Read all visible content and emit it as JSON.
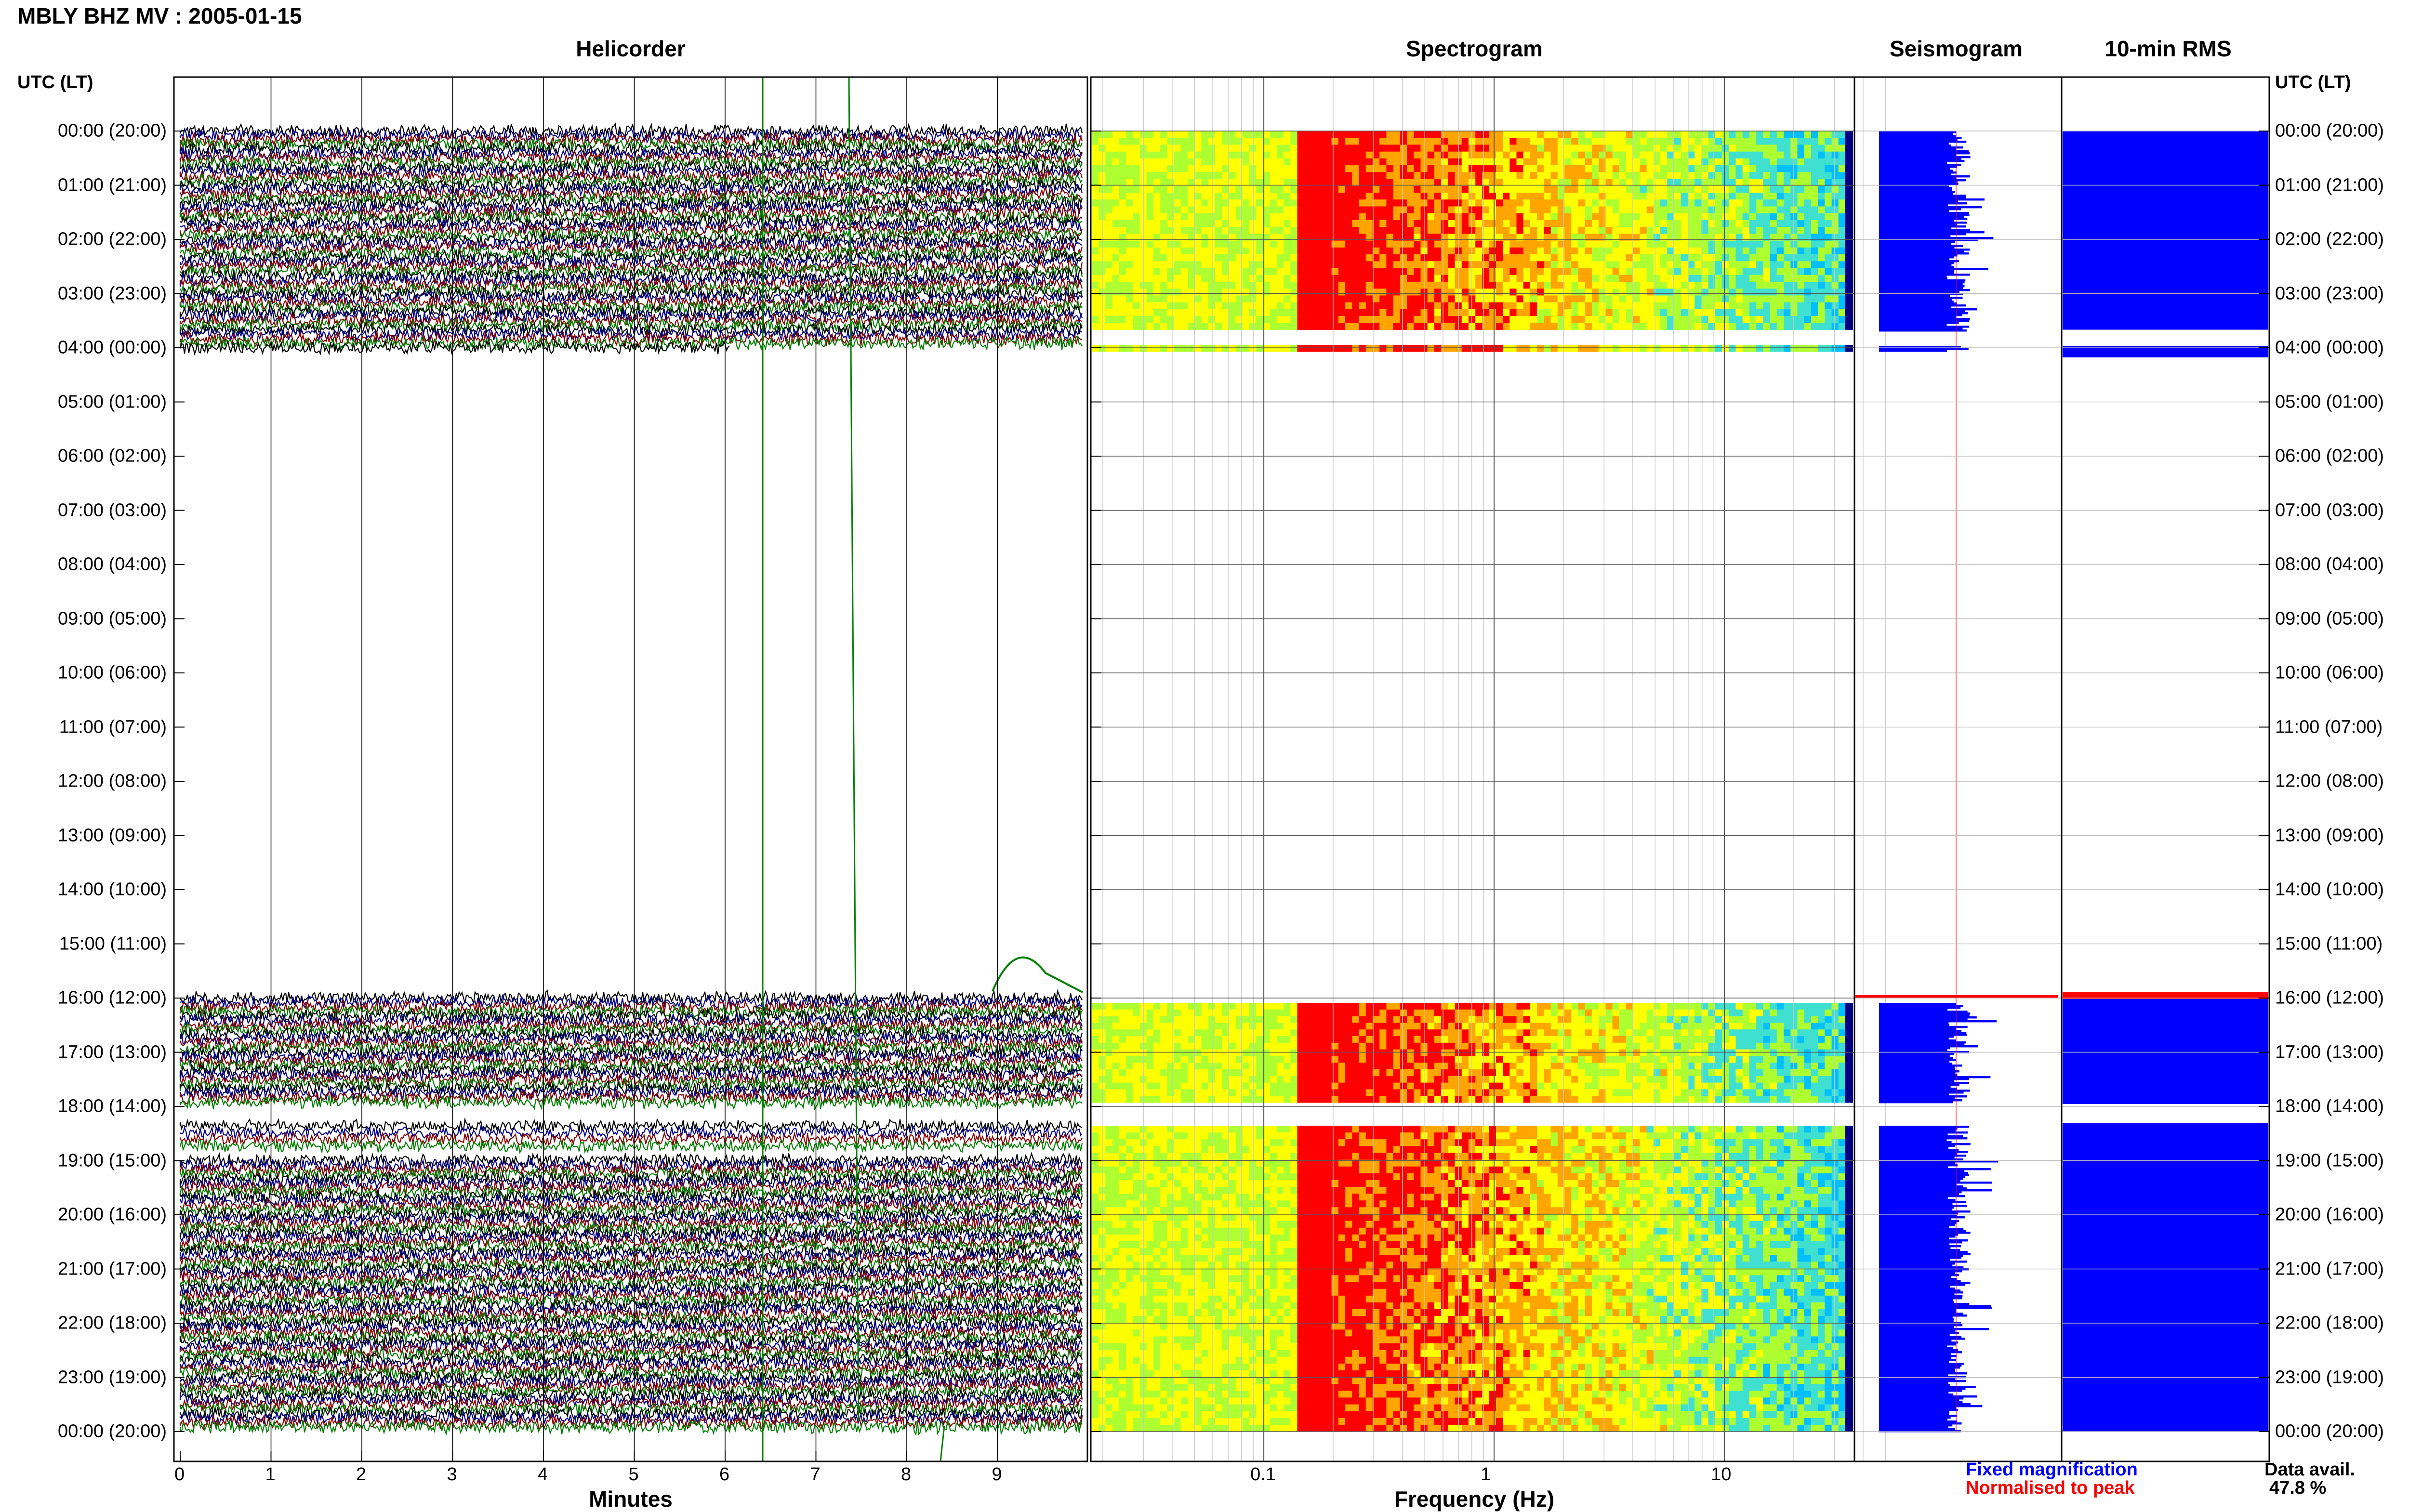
{
  "header": {
    "title": "MBLY BHZ MV : 2005-01-15",
    "utc_label_left": "UTC (LT)",
    "utc_label_right": "UTC (LT)"
  },
  "panels": {
    "helicorder": "Helicorder",
    "spectrogram": "Spectrogram",
    "seismogram": "Seismogram",
    "rms": "10-min RMS"
  },
  "time_labels": [
    "00:00 (20:00)",
    "01:00 (21:00)",
    "02:00 (22:00)",
    "03:00 (23:00)",
    "04:00 (00:00)",
    "05:00 (01:00)",
    "06:00 (02:00)",
    "07:00 (03:00)",
    "08:00 (04:00)",
    "09:00 (05:00)",
    "10:00 (06:00)",
    "11:00 (07:00)",
    "12:00 (08:00)",
    "13:00 (09:00)",
    "14:00 (10:00)",
    "15:00 (11:00)",
    "16:00 (12:00)",
    "17:00 (13:00)",
    "18:00 (14:00)",
    "19:00 (15:00)",
    "20:00 (16:00)",
    "21:00 (17:00)",
    "22:00 (18:00)",
    "23:00 (19:00)",
    "00:00 (20:00)"
  ],
  "helicorder_axis": {
    "title": "Minutes",
    "ticks": [
      "0",
      "1",
      "2",
      "3",
      "4",
      "5",
      "6",
      "7",
      "8",
      "9"
    ]
  },
  "spectrogram_axis": {
    "title": "Frequency (Hz)",
    "ticks": [
      "0.1",
      "1",
      "10"
    ]
  },
  "legend": {
    "fixed": "Fixed magnification",
    "normalised": "Normalised to peak",
    "fixed_color": "#0000ff",
    "normalised_color": "#ff0000"
  },
  "data_availability": {
    "label": "Data avail.",
    "value": "47.8 %"
  },
  "chart_data": {
    "type": "heatmap",
    "x_scale": "log",
    "xlim": [
      0.02,
      50
    ],
    "hours_with_data": [
      0,
      1,
      2,
      3,
      16,
      17,
      19,
      20,
      21,
      22,
      23
    ],
    "partial_hours": [
      4,
      18
    ],
    "trace_colors": [
      "#000000",
      "#00008b",
      "#8b0000",
      "#008000"
    ],
    "colormap": [
      "#000080",
      "#0000ff",
      "#00bfff",
      "#40e0d0",
      "#adff2f",
      "#ffff00",
      "#ffa500",
      "#ff0000"
    ]
  }
}
